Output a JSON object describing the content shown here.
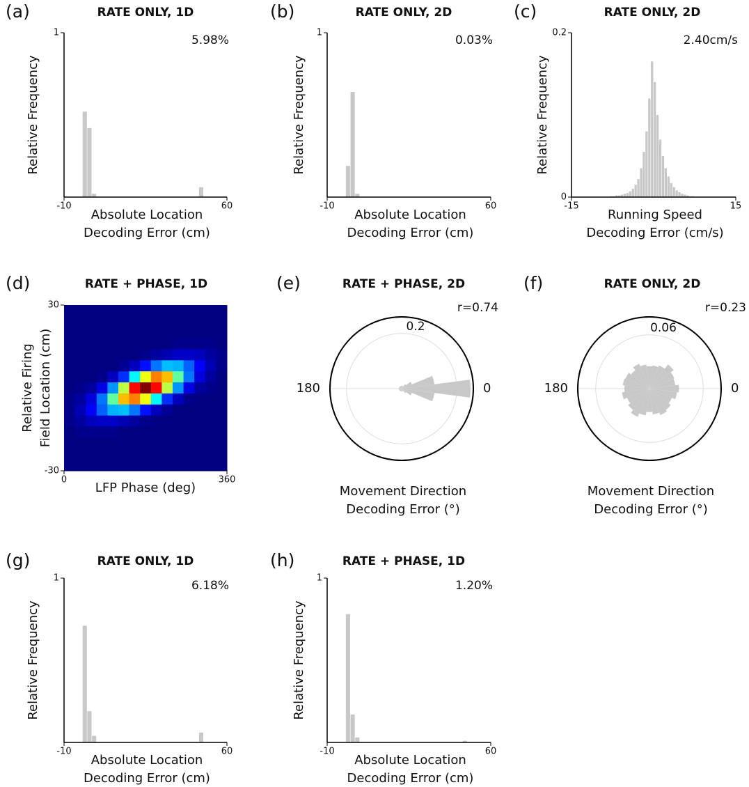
{
  "chart_data": [
    {
      "type": "histogram",
      "label": "(a)",
      "title": "RATE ONLY, 1D",
      "annotation": "5.98%",
      "xlabel": [
        "Absolute Location",
        "Decoding Error (cm)"
      ],
      "ylabel": "Relative Frequency",
      "bins": [
        -2,
        0,
        2,
        4,
        6,
        8,
        10,
        12,
        14,
        16,
        18,
        20,
        22,
        24,
        26,
        28,
        30,
        32,
        34,
        36,
        38,
        40,
        42,
        44,
        46,
        48,
        50
      ],
      "values": [
        0.52,
        0.42,
        0.02,
        0,
        0,
        0,
        0,
        0,
        0,
        0,
        0,
        0,
        0,
        0,
        0,
        0,
        0,
        0,
        0,
        0,
        0,
        0,
        0,
        0,
        0,
        0.06
      ],
      "color": "#c8c8c8",
      "xlim": [
        -10,
        60
      ],
      "xticks": [
        -10,
        60
      ],
      "ylim": [
        0,
        1
      ],
      "yticks": [
        1
      ]
    },
    {
      "type": "histogram",
      "label": "(b)",
      "title": "RATE ONLY, 2D",
      "annotation": "0.03%",
      "xlabel": [
        "Absolute Location",
        "Decoding Error (cm)"
      ],
      "ylabel": "Relative Frequency",
      "bins": [
        -2,
        0,
        2,
        4,
        6,
        8,
        10,
        12,
        14,
        16,
        18,
        20,
        22,
        24,
        26,
        28,
        30,
        32,
        34,
        36,
        38,
        40,
        42,
        44,
        46,
        48,
        50
      ],
      "values": [
        0.19,
        0.64,
        0.02,
        0,
        0,
        0,
        0,
        0,
        0,
        0,
        0,
        0,
        0,
        0,
        0,
        0,
        0,
        0,
        0,
        0,
        0,
        0,
        0,
        0,
        0,
        0
      ],
      "color": "#c8c8c8",
      "xlim": [
        -10,
        60
      ],
      "xticks": [
        -10,
        60
      ],
      "ylim": [
        0,
        1
      ],
      "yticks": [
        1
      ]
    },
    {
      "type": "histogram",
      "label": "(c)",
      "title": "RATE ONLY, 2D",
      "annotation": "2.40cm/s",
      "xlabel": [
        "Running Speed",
        "Decoding Error (cm/s)"
      ],
      "ylabel": "Relative Frequency",
      "bins": [
        -10,
        -9.5,
        -9,
        -8.5,
        -8,
        -7.5,
        -7,
        -6.5,
        -6,
        -5.5,
        -5,
        -4.5,
        -4,
        -3.5,
        -3,
        -2.5,
        -2,
        -1.5,
        -1,
        -0.5,
        0,
        0.5,
        1,
        1.5,
        2,
        2.5,
        3,
        3.5,
        4,
        4.5,
        5,
        5.5,
        6,
        6.5,
        7,
        7.5,
        8,
        8.5,
        9,
        9.5,
        10
      ],
      "values": [
        0,
        0,
        0,
        0,
        0.001,
        0.001,
        0.002,
        0.002,
        0.003,
        0.004,
        0.005,
        0.007,
        0.01,
        0.015,
        0.022,
        0.035,
        0.055,
        0.08,
        0.12,
        0.165,
        0.14,
        0.1,
        0.07,
        0.05,
        0.035,
        0.025,
        0.017,
        0.012,
        0.008,
        0.006,
        0.004,
        0.003,
        0.002,
        0.001,
        0.001,
        0,
        0,
        0,
        0,
        0
      ],
      "color": "#c8c8c8",
      "xlim": [
        -15,
        15
      ],
      "xticks": [
        -15,
        15
      ],
      "ylim": [
        0,
        0.2
      ],
      "yticks": [
        0,
        0.2
      ]
    },
    {
      "type": "heatmap",
      "label": "(d)",
      "title": "RATE + PHASE, 1D",
      "xlabel": [
        "LFP Phase (deg)"
      ],
      "ylabel": [
        "Relative Firing",
        "Field Location (cm)"
      ],
      "xlim": [
        0,
        360
      ],
      "xticks": [
        0,
        360
      ],
      "ylim": [
        -30,
        30
      ],
      "yticks": [
        -30,
        30
      ],
      "colormap": "jet",
      "values": [
        [
          0.05,
          0.05,
          0.05,
          0.05,
          0.05,
          0.05,
          0.05,
          0.05,
          0.05,
          0.05,
          0.05,
          0.05,
          0.05,
          0.05,
          0.05
        ],
        [
          0.05,
          0.05,
          0.05,
          0.05,
          0.05,
          0.05,
          0.05,
          0.05,
          0.05,
          0.05,
          0.05,
          0.05,
          0.05,
          0.05,
          0.05
        ],
        [
          0.05,
          0.05,
          0.05,
          0.05,
          0.05,
          0.05,
          0.05,
          0.05,
          0.05,
          0.05,
          0.05,
          0.05,
          0.05,
          0.05,
          0.05
        ],
        [
          0.05,
          0.05,
          0.05,
          0.05,
          0.05,
          0.05,
          0.05,
          0.05,
          0.05,
          0.05,
          0.06,
          0.06,
          0.06,
          0.06,
          0.05
        ],
        [
          0.05,
          0.05,
          0.05,
          0.05,
          0.05,
          0.05,
          0.05,
          0.06,
          0.08,
          0.1,
          0.12,
          0.12,
          0.11,
          0.08,
          0.06
        ],
        [
          0.05,
          0.05,
          0.05,
          0.05,
          0.05,
          0.07,
          0.11,
          0.19,
          0.29,
          0.36,
          0.35,
          0.27,
          0.17,
          0.1,
          0.06
        ],
        [
          0.05,
          0.05,
          0.05,
          0.06,
          0.11,
          0.22,
          0.42,
          0.66,
          0.8,
          0.74,
          0.52,
          0.29,
          0.14,
          0.08,
          0.05
        ],
        [
          0.05,
          0.06,
          0.08,
          0.15,
          0.32,
          0.61,
          0.92,
          1.05,
          0.92,
          0.61,
          0.32,
          0.15,
          0.08,
          0.06,
          0.05
        ],
        [
          0.06,
          0.08,
          0.14,
          0.29,
          0.52,
          0.74,
          0.8,
          0.66,
          0.42,
          0.22,
          0.11,
          0.06,
          0.05,
          0.05,
          0.05
        ],
        [
          0.06,
          0.1,
          0.17,
          0.27,
          0.35,
          0.36,
          0.29,
          0.19,
          0.11,
          0.07,
          0.05,
          0.05,
          0.05,
          0.05,
          0.05
        ],
        [
          0.06,
          0.08,
          0.11,
          0.12,
          0.12,
          0.1,
          0.08,
          0.06,
          0.05,
          0.05,
          0.05,
          0.05,
          0.05,
          0.05,
          0.05
        ],
        [
          0.05,
          0.06,
          0.06,
          0.06,
          0.06,
          0.05,
          0.05,
          0.05,
          0.05,
          0.05,
          0.05,
          0.05,
          0.05,
          0.05,
          0.05
        ],
        [
          0.05,
          0.05,
          0.05,
          0.05,
          0.05,
          0.05,
          0.05,
          0.05,
          0.05,
          0.05,
          0.05,
          0.05,
          0.05,
          0.05,
          0.05
        ],
        [
          0.05,
          0.05,
          0.05,
          0.05,
          0.05,
          0.05,
          0.05,
          0.05,
          0.05,
          0.05,
          0.05,
          0.05,
          0.05,
          0.05,
          0.05
        ],
        [
          0.05,
          0.05,
          0.05,
          0.05,
          0.05,
          0.05,
          0.05,
          0.05,
          0.05,
          0.05,
          0.05,
          0.05,
          0.05,
          0.05,
          0.05
        ]
      ]
    },
    {
      "type": "polar_bar",
      "label": "(e)",
      "title": "RATE + PHASE, 2D",
      "annotation": "r=0.74",
      "xlabel": [
        "Movement Direction",
        "Decoding Error (°)"
      ],
      "categories": [
        0,
        15,
        30,
        45,
        60,
        75,
        90,
        105,
        120,
        135,
        150,
        165,
        180,
        195,
        210,
        225,
        240,
        255,
        270,
        285,
        300,
        315,
        330,
        345
      ],
      "values": [
        0.25,
        0.12,
        0.04,
        0.02,
        0.01,
        0.01,
        0.01,
        0.01,
        0.01,
        0.01,
        0.01,
        0.01,
        0.01,
        0.01,
        0.01,
        0.01,
        0.01,
        0.01,
        0.01,
        0.01,
        0.01,
        0.02,
        0.04,
        0.12
      ],
      "color": "#c8c8c8",
      "rlim": [
        0,
        0.26
      ],
      "rticks": [
        0.2
      ],
      "thetaticks": [
        0,
        180
      ]
    },
    {
      "type": "polar_bar",
      "label": "(f)",
      "title": "RATE ONLY, 2D",
      "annotation": "r=0.23",
      "xlabel": [
        "Movement Direction",
        "Decoding Error (°)"
      ],
      "categories": [
        0,
        15,
        30,
        45,
        60,
        75,
        90,
        105,
        120,
        135,
        150,
        165,
        180,
        195,
        210,
        225,
        240,
        255,
        270,
        285,
        300,
        315,
        330,
        345
      ],
      "values": [
        0.033,
        0.029,
        0.03,
        0.034,
        0.028,
        0.026,
        0.025,
        0.027,
        0.03,
        0.026,
        0.029,
        0.03,
        0.028,
        0.031,
        0.027,
        0.03,
        0.034,
        0.03,
        0.026,
        0.029,
        0.032,
        0.03,
        0.027,
        0.031
      ],
      "color": "#c8c8c8",
      "rlim": [
        0,
        0.08
      ],
      "rticks": [
        0.06
      ],
      "thetaticks": [
        0,
        180
      ]
    },
    {
      "type": "histogram",
      "label": "(g)",
      "title": "RATE ONLY, 1D",
      "annotation": "6.18%",
      "xlabel": [
        "Absolute Location",
        "Decoding Error (cm)"
      ],
      "ylabel": "Relative Frequency",
      "bins": [
        -2,
        0,
        2,
        4,
        6,
        8,
        10,
        12,
        14,
        16,
        18,
        20,
        22,
        24,
        26,
        28,
        30,
        32,
        34,
        36,
        38,
        40,
        42,
        44,
        46,
        48,
        50
      ],
      "values": [
        0.71,
        0.19,
        0.04,
        0,
        0,
        0,
        0,
        0,
        0,
        0,
        0,
        0,
        0,
        0,
        0,
        0,
        0,
        0,
        0,
        0,
        0,
        0,
        0,
        0,
        0,
        0.06
      ],
      "color": "#c8c8c8",
      "xlim": [
        -10,
        60
      ],
      "xticks": [
        -10,
        60
      ],
      "ylim": [
        0,
        1
      ],
      "yticks": [
        1
      ]
    },
    {
      "type": "histogram",
      "label": "(h)",
      "title": "RATE + PHASE, 1D",
      "annotation": "1.20%",
      "xlabel": [
        "Absolute Location",
        "Decoding Error (cm)"
      ],
      "ylabel": "Relative Frequency",
      "bins": [
        -2,
        0,
        2,
        4,
        6,
        8,
        10,
        12,
        14,
        16,
        18,
        20,
        22,
        24,
        26,
        28,
        30,
        32,
        34,
        36,
        38,
        40,
        42,
        44,
        46,
        48,
        50
      ],
      "values": [
        0.78,
        0.17,
        0.03,
        0,
        0,
        0,
        0,
        0,
        0,
        0,
        0,
        0,
        0,
        0,
        0,
        0,
        0,
        0,
        0,
        0,
        0,
        0,
        0,
        0,
        0,
        0.01
      ],
      "color": "#c8c8c8",
      "xlim": [
        -10,
        60
      ],
      "xticks": [
        -10,
        60
      ],
      "ylim": [
        0,
        1
      ],
      "yticks": [
        1
      ]
    }
  ]
}
